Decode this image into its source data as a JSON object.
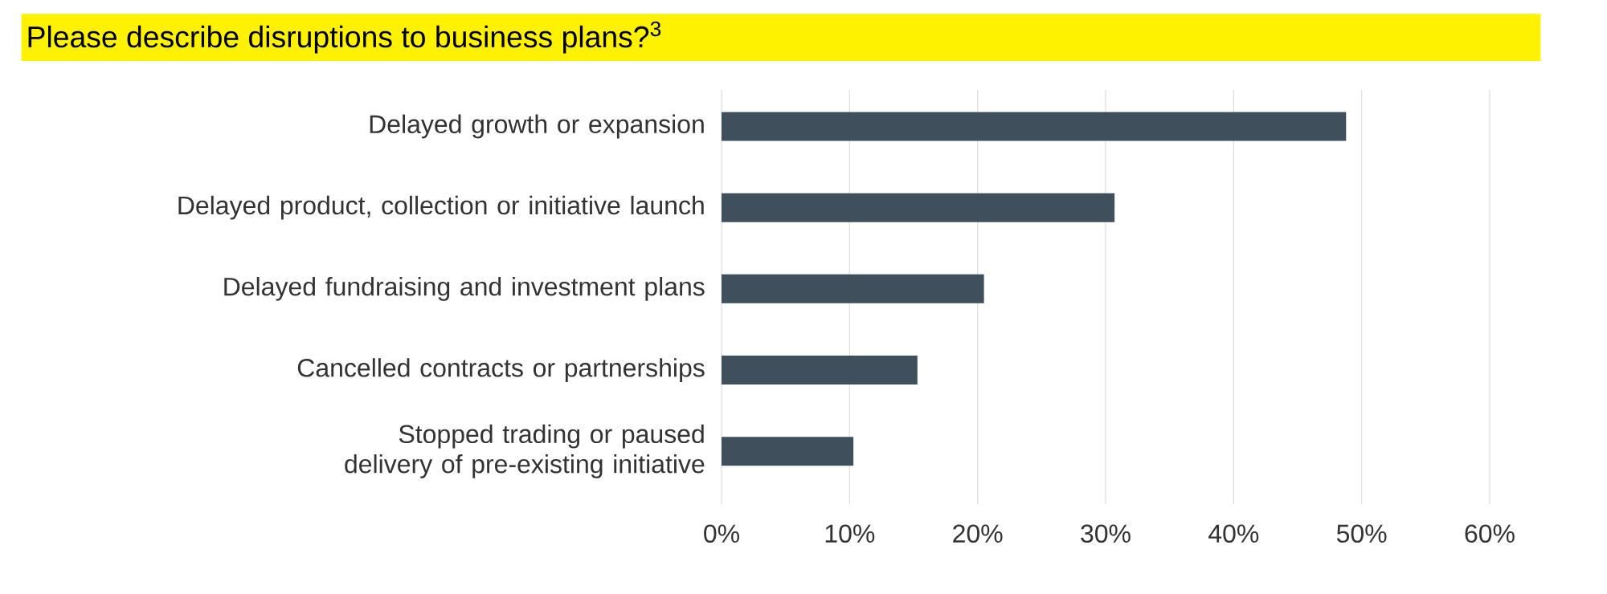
{
  "chart_data": {
    "type": "bar",
    "orientation": "horizontal",
    "title": "Please describe disruptions to business plans?$^{3}$",
    "categories": [
      "Delayed growth or expansion",
      "Delayed product, collection or initiative launch",
      "Delayed fundraising and investment plans",
      "Cancelled contracts or partnerships",
      "Stopped trading or paused delivery of pre-existing initiative"
    ],
    "values": [
      48.8,
      30.7,
      20.5,
      15.3,
      10.3
    ],
    "color": "#3f505c",
    "xlim": [
      0,
      60
    ],
    "xticks": [
      {
        "value": 0,
        "label": "0%"
      },
      {
        "value": 10,
        "label": "10%"
      },
      {
        "value": 20,
        "label": "20%"
      },
      {
        "value": 30,
        "label": "30%"
      },
      {
        "value": 40,
        "label": "40%"
      },
      {
        "value": 50,
        "label": "50%"
      },
      {
        "value": 60,
        "label": "60%"
      }
    ],
    "grid": "x"
  }
}
